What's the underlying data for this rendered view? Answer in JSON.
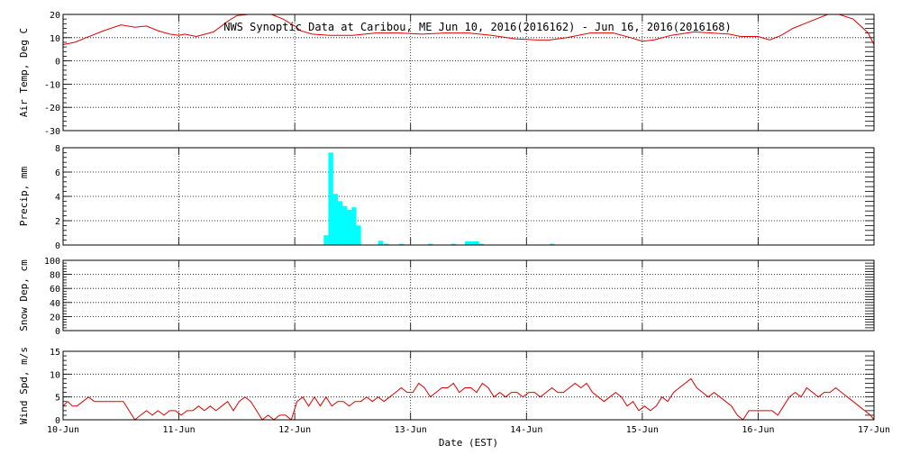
{
  "chart_data": [
    {
      "type": "line",
      "title": "NWS Synoptic Data at Caribou, ME   Jun 10, 2016(2016162) - Jun 16, 2016(2016168)",
      "ylabel": "Air Temp, Deg C",
      "xlabel": "",
      "xlim": [
        0,
        7
      ],
      "ylim": [
        -30,
        20
      ],
      "yticks": [
        -30,
        -20,
        -10,
        0,
        10,
        20
      ],
      "grid": true,
      "color": "#e00000",
      "series": [
        {
          "x": [
            0,
            0.1,
            0.2,
            0.35,
            0.5,
            0.62,
            0.72,
            0.82,
            0.92,
            1.0,
            1.05,
            1.15,
            1.3,
            1.42,
            1.5,
            1.6,
            1.7,
            1.8,
            1.9,
            2.0,
            2.05,
            2.15,
            2.3,
            2.5,
            2.7,
            2.9,
            3.1,
            3.3,
            3.5,
            3.7,
            3.9,
            4.1,
            4.2,
            4.35,
            4.55,
            4.75,
            4.9,
            5.0,
            5.1,
            5.25,
            5.45,
            5.6,
            5.75,
            5.85,
            6.0,
            6.1,
            6.2,
            6.3,
            6.45,
            6.6,
            6.7,
            6.82,
            6.95,
            7.0
          ],
          "y": [
            7,
            8,
            10,
            13,
            15.5,
            14.5,
            15,
            13,
            11.5,
            11,
            11.5,
            10.5,
            12.5,
            17,
            19.5,
            21,
            21,
            20,
            18,
            15,
            13,
            11.5,
            11,
            11,
            12,
            12,
            11.5,
            12,
            12,
            11,
            9.5,
            9,
            9,
            10,
            12,
            12,
            10,
            8.5,
            9,
            11,
            12.5,
            12,
            11.5,
            10.5,
            10.5,
            9,
            11,
            14,
            17,
            21,
            21,
            18,
            12,
            7
          ]
        }
      ]
    },
    {
      "type": "bar",
      "ylabel": "Precip, mm",
      "xlim": [
        0,
        7
      ],
      "ylim": [
        0,
        8
      ],
      "yticks": [
        0,
        2,
        4,
        6,
        8
      ],
      "grid": true,
      "color": "#00ffff",
      "series": [
        {
          "x": [
            2.25,
            2.29,
            2.33,
            2.37,
            2.41,
            2.45,
            2.49,
            2.53,
            2.72,
            2.77,
            2.9,
            3.15,
            3.35,
            3.47,
            3.51,
            3.55,
            3.59,
            4.2
          ],
          "values": [
            0.8,
            7.6,
            4.2,
            3.6,
            3.2,
            2.9,
            3.1,
            1.6,
            0.35,
            0.1,
            0.1,
            0.1,
            0.1,
            0.3,
            0.3,
            0.3,
            0.1,
            0.1
          ]
        }
      ]
    },
    {
      "type": "line",
      "ylabel": "Snow Dep, cm",
      "xlim": [
        0,
        7
      ],
      "ylim": [
        0,
        100
      ],
      "yticks": [
        0,
        20,
        40,
        60,
        80,
        100
      ],
      "grid": true,
      "series": []
    },
    {
      "type": "line",
      "ylabel": "Wind Spd, m/s",
      "xlabel": "Date (EST)",
      "xlim": [
        0,
        7
      ],
      "ylim": [
        0,
        15
      ],
      "yticks": [
        0,
        5,
        10,
        15
      ],
      "xticks": [
        0,
        1,
        2,
        3,
        4,
        5,
        6,
        7
      ],
      "categories": [
        "10-Jun",
        "11-Jun",
        "12-Jun",
        "13-Jun",
        "14-Jun",
        "15-Jun",
        "16-Jun",
        "17-Jun"
      ],
      "grid": true,
      "color": "#e00000",
      "series": [
        {
          "x": [
            0,
            0.04,
            0.08,
            0.12,
            0.17,
            0.22,
            0.27,
            0.32,
            0.37,
            0.42,
            0.47,
            0.52,
            0.57,
            0.62,
            0.67,
            0.72,
            0.77,
            0.82,
            0.87,
            0.92,
            0.97,
            1.02,
            1.07,
            1.12,
            1.17,
            1.22,
            1.27,
            1.32,
            1.37,
            1.42,
            1.47,
            1.52,
            1.57,
            1.62,
            1.67,
            1.72,
            1.77,
            1.82,
            1.87,
            1.92,
            1.97,
            2.02,
            2.07,
            2.12,
            2.17,
            2.22,
            2.27,
            2.32,
            2.37,
            2.42,
            2.47,
            2.52,
            2.57,
            2.62,
            2.67,
            2.72,
            2.77,
            2.82,
            2.87,
            2.92,
            2.97,
            3.02,
            3.07,
            3.12,
            3.17,
            3.22,
            3.27,
            3.32,
            3.37,
            3.42,
            3.47,
            3.52,
            3.57,
            3.62,
            3.67,
            3.72,
            3.77,
            3.82,
            3.87,
            3.92,
            3.97,
            4.02,
            4.07,
            4.12,
            4.17,
            4.22,
            4.27,
            4.32,
            4.37,
            4.42,
            4.47,
            4.52,
            4.57,
            4.62,
            4.67,
            4.72,
            4.77,
            4.82,
            4.87,
            4.92,
            4.97,
            5.02,
            5.07,
            5.12,
            5.17,
            5.22,
            5.27,
            5.32,
            5.37,
            5.42,
            5.47,
            5.52,
            5.57,
            5.62,
            5.67,
            5.72,
            5.77,
            5.82,
            5.87,
            5.92,
            5.97,
            6.02,
            6.07,
            6.12,
            6.17,
            6.22,
            6.27,
            6.32,
            6.37,
            6.42,
            6.47,
            6.52,
            6.57,
            6.62,
            6.67,
            6.72,
            6.77,
            6.82,
            6.87,
            6.92,
            6.97,
            7.0
          ],
          "y": [
            3,
            4,
            3,
            3,
            4,
            5,
            4,
            4,
            4,
            4,
            4,
            4,
            2,
            0,
            1,
            2,
            1,
            2,
            1,
            2,
            2,
            1,
            2,
            2,
            3,
            2,
            3,
            2,
            3,
            4,
            2,
            4,
            5,
            4,
            2,
            0,
            1,
            0,
            1,
            1,
            0,
            4,
            5,
            3,
            5,
            3,
            5,
            3,
            4,
            4,
            3,
            4,
            4,
            5,
            4,
            5,
            4,
            5,
            6,
            7,
            6,
            6,
            8,
            7,
            5,
            6,
            7,
            7,
            8,
            6,
            7,
            7,
            6,
            8,
            7,
            5,
            6,
            5,
            6,
            6,
            5,
            6,
            6,
            5,
            6,
            7,
            6,
            6,
            7,
            8,
            7,
            8,
            6,
            5,
            4,
            5,
            6,
            5,
            3,
            4,
            2,
            3,
            2,
            3,
            5,
            4,
            6,
            7,
            8,
            9,
            7,
            6,
            5,
            6,
            5,
            4,
            3,
            1,
            0,
            2,
            2,
            2,
            2,
            2,
            1,
            3,
            5,
            6,
            5,
            7,
            6,
            5,
            6,
            6,
            7,
            6,
            5,
            4,
            3,
            2,
            1,
            0
          ]
        }
      ]
    }
  ]
}
